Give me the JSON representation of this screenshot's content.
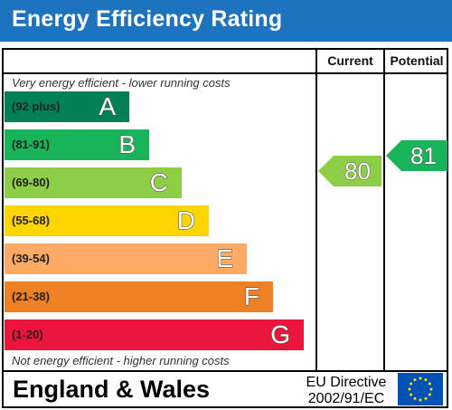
{
  "header": {
    "title": "Energy Efficiency Rating"
  },
  "columns": {
    "current": "Current",
    "potential": "Potential"
  },
  "captions": {
    "top": "Very energy efficient - lower running costs",
    "bottom": "Not energy efficient - higher running costs"
  },
  "bands": [
    {
      "range": "(92 plus)",
      "letter": "A",
      "color": "#008054"
    },
    {
      "range": "(81-91)",
      "letter": "B",
      "color": "#19b459"
    },
    {
      "range": "(69-80)",
      "letter": "C",
      "color": "#8dce46"
    },
    {
      "range": "(55-68)",
      "letter": "D",
      "color": "#ffd500"
    },
    {
      "range": "(39-54)",
      "letter": "E",
      "color": "#fcaa65"
    },
    {
      "range": "(21-38)",
      "letter": "F",
      "color": "#ef8023"
    },
    {
      "range": "(1-20)",
      "letter": "G",
      "color": "#e9153b"
    }
  ],
  "ratings": {
    "current": {
      "value": "80",
      "band": "C",
      "color": "#8dce46"
    },
    "potential": {
      "value": "81",
      "band": "B",
      "color": "#19b459"
    }
  },
  "footer": {
    "country": "England & Wales",
    "directive_line1": "EU Directive",
    "directive_line2": "2002/91/EC",
    "flag_icon": "eu-flag-icon"
  }
}
